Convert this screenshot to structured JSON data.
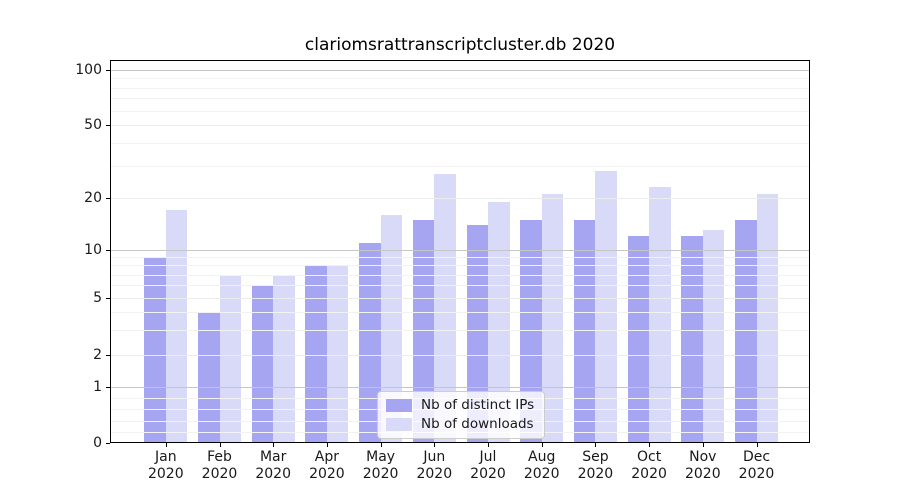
{
  "chart_data": {
    "type": "bar",
    "title": "clariomsrattranscriptcluster.db 2020",
    "year_label": "2020",
    "categories": [
      "Jan",
      "Feb",
      "Mar",
      "Apr",
      "May",
      "Jun",
      "Jul",
      "Aug",
      "Sep",
      "Oct",
      "Nov",
      "Dec"
    ],
    "series": [
      {
        "name": "Nb of distinct IPs",
        "color": "#a5a5f2",
        "values": [
          9,
          4,
          6,
          8,
          11,
          15,
          14,
          15,
          15,
          12,
          12,
          15
        ]
      },
      {
        "name": "Nb of downloads",
        "color": "#d9d9f8",
        "values": [
          17,
          7,
          7,
          8,
          16,
          27,
          19,
          21,
          28,
          23,
          13,
          21
        ]
      }
    ],
    "xlabel": "",
    "ylabel": "",
    "yscale": "symlog",
    "y_ticks": [
      0,
      1,
      2,
      5,
      10,
      20,
      50,
      100
    ],
    "y_tick_labels": [
      "0",
      "1",
      "2",
      "5",
      "10",
      "20",
      "50",
      "100"
    ],
    "ylim": [
      0,
      114
    ],
    "grid": true,
    "legend_position": "lower center"
  },
  "colors": {
    "axis": "#000000",
    "grid_major": "#c6c6c6",
    "grid_minor": "#f2f2f2",
    "background": "#ffffff"
  }
}
